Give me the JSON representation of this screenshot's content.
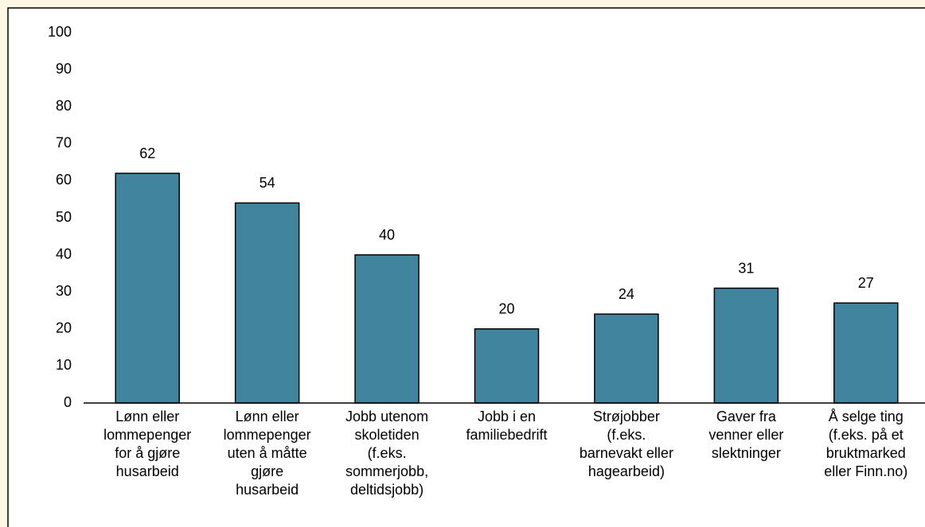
{
  "chart_data": {
    "type": "bar",
    "categories": [
      "Lønn eller\nlommepenger\nfor å gjøre\nhusarbeid",
      "Lønn eller\nlommepenger\nuten å måtte\ngjøre\nhusarbeid",
      "Jobb utenom\nskoletiden\n(f.eks.\nsommerjobb,\ndeltidsjobb)",
      "Jobb i en\nfamiliebedrift",
      "Strøjobber\n(f.eks.\nbarnevakt eller\nhagearbeid)",
      "Gaver fra\nvenner eller\nslektninger",
      "Å selge ting\n(f.eks. på et\nbruktmarked\neller Finn.no)"
    ],
    "values": [
      62,
      54,
      40,
      20,
      24,
      31,
      27
    ],
    "color": "#41849e",
    "ylim": [
      0,
      100
    ],
    "yticks": [
      0,
      10,
      20,
      30,
      40,
      50,
      60,
      70,
      80,
      90,
      100
    ],
    "grid": false
  }
}
